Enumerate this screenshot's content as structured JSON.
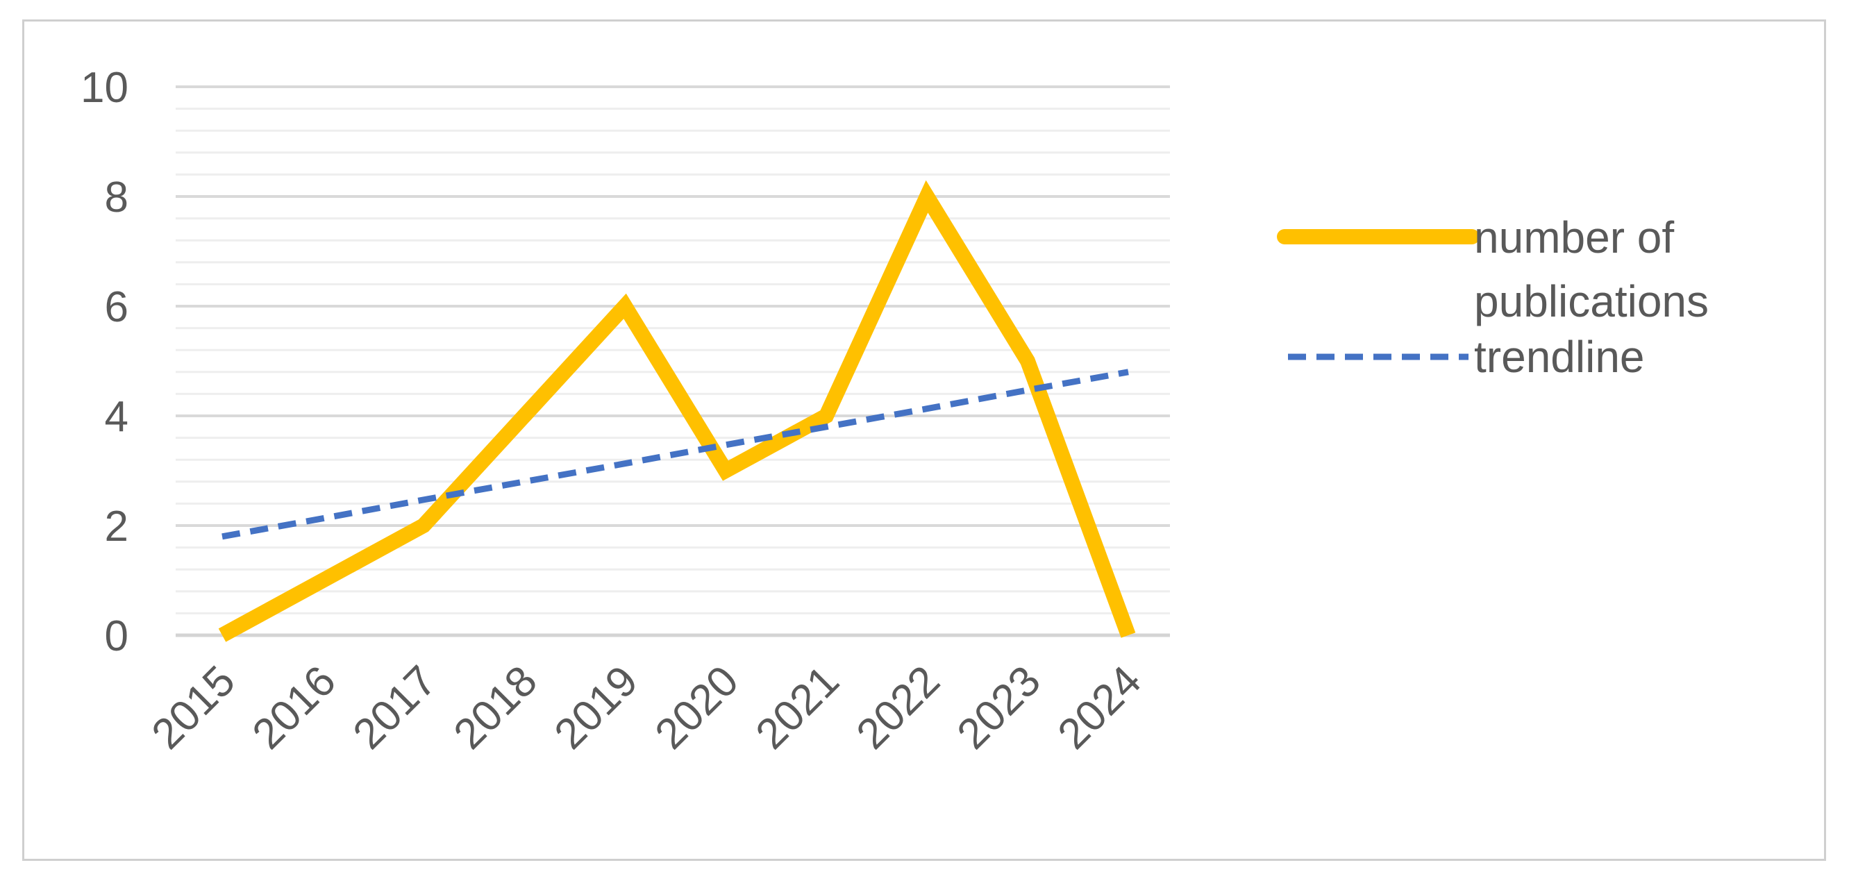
{
  "chart_data": {
    "type": "line",
    "title": "",
    "xlabel": "",
    "ylabel": "",
    "x": [
      "2015",
      "2016",
      "2017",
      "2018",
      "2019",
      "2020",
      "2021",
      "2022",
      "2023",
      "2024"
    ],
    "ylim": [
      0,
      10
    ],
    "yticks": [
      "0",
      "2",
      "4",
      "6",
      "8",
      "10"
    ],
    "grid": true,
    "minor_grid": true,
    "legend_position": "right",
    "series": [
      {
        "name": "number of publications",
        "legend_lines": [
          "number of",
          "publications"
        ],
        "values": [
          0,
          1,
          2,
          4,
          6,
          3,
          4,
          8,
          5,
          0
        ],
        "color": "#FFC000",
        "style": "solid"
      },
      {
        "name": "trendline",
        "legend_lines": [
          "trendline"
        ],
        "values": [
          1.8,
          2.13,
          2.47,
          2.8,
          3.13,
          3.47,
          3.8,
          4.13,
          4.47,
          4.8
        ],
        "color": "#4472C4",
        "style": "dashed"
      }
    ]
  }
}
